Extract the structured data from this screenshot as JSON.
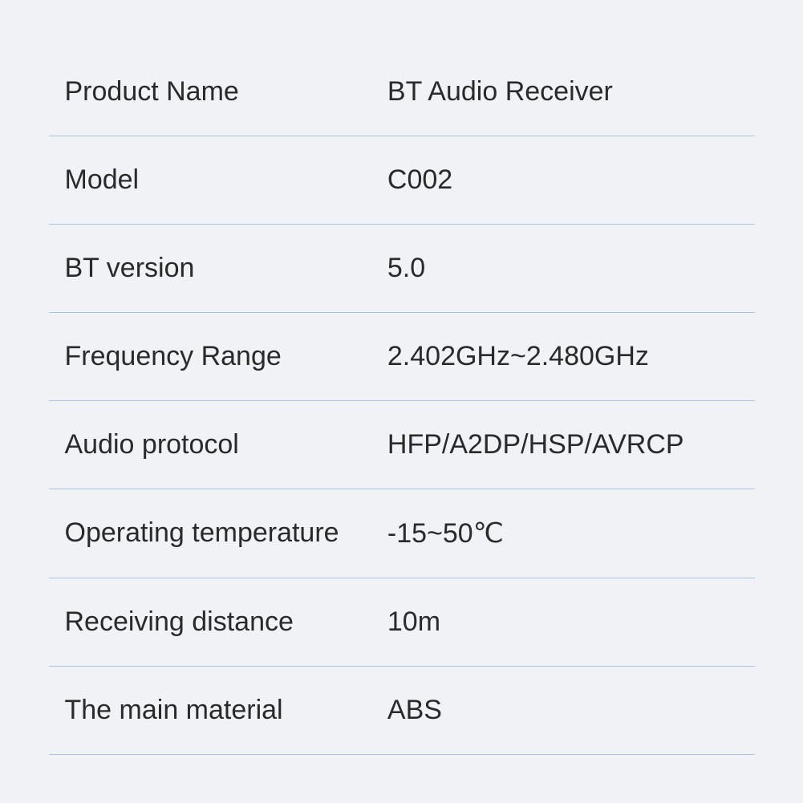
{
  "table": {
    "background_color": "#f0f2f5",
    "divider_color": "#a8c4e6",
    "text_color": "#2a2a2a",
    "font_size": 34,
    "rows": [
      {
        "label": "Product Name",
        "value": "BT Audio Receiver"
      },
      {
        "label": "Model",
        "value": "C002"
      },
      {
        "label": "BT version",
        "value": "5.0"
      },
      {
        "label": "Frequency Range",
        "value": "2.402GHz~2.480GHz"
      },
      {
        "label": "Audio protocol",
        "value": "HFP/A2DP/HSP/AVRCP"
      },
      {
        "label": "Operating temperature",
        "value": "-15~50℃"
      },
      {
        "label": "Receiving distance",
        "value": "10m"
      },
      {
        "label": "The main material",
        "value": "ABS"
      }
    ]
  }
}
